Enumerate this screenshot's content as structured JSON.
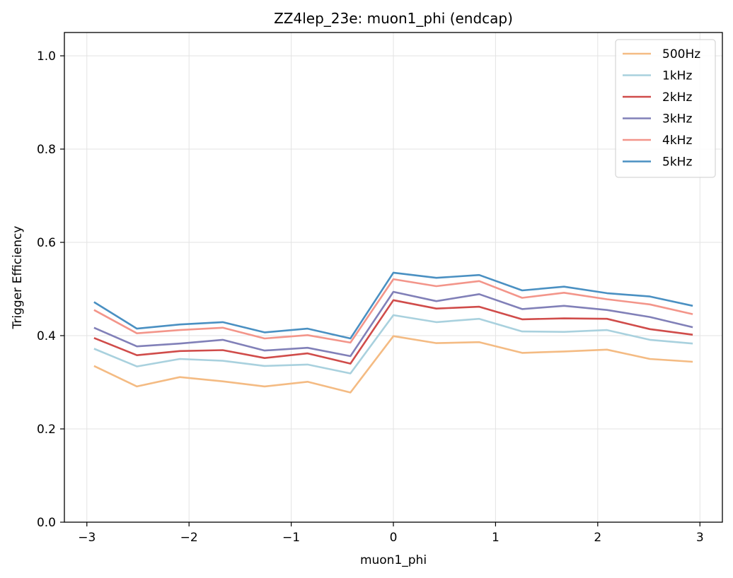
{
  "chart_data": {
    "type": "line",
    "title": "ZZ4lep_23e: muon1_phi (endcap)",
    "xlabel": "muon1_phi",
    "ylabel": "Trigger Efficiency",
    "xlim": [
      -3.22,
      3.22
    ],
    "ylim": [
      0.0,
      1.05
    ],
    "xticks": [
      -3,
      -2,
      -1,
      0,
      1,
      2,
      3
    ],
    "xtick_labels": [
      "−3",
      "−2",
      "−1",
      "0",
      "1",
      "2",
      "3"
    ],
    "yticks": [
      0.0,
      0.2,
      0.4,
      0.6,
      0.8,
      1.0
    ],
    "ytick_labels": [
      "0.0",
      "0.2",
      "0.4",
      "0.6",
      "0.8",
      "1.0"
    ],
    "grid": true,
    "legend_position": "top-right",
    "x": [
      -2.93,
      -2.51,
      -2.09,
      -1.67,
      -1.26,
      -0.84,
      -0.42,
      0.0,
      0.42,
      0.84,
      1.26,
      1.67,
      2.09,
      2.51,
      2.93
    ],
    "series": [
      {
        "name": "500Hz",
        "color": "#f4bb83",
        "values": [
          0.335,
          0.291,
          0.311,
          0.302,
          0.291,
          0.301,
          0.278,
          0.399,
          0.384,
          0.386,
          0.363,
          0.366,
          0.37,
          0.35,
          0.344
        ]
      },
      {
        "name": "1kHz",
        "color": "#a9d1de",
        "values": [
          0.372,
          0.334,
          0.35,
          0.346,
          0.335,
          0.338,
          0.319,
          0.444,
          0.429,
          0.436,
          0.409,
          0.408,
          0.412,
          0.391,
          0.383
        ]
      },
      {
        "name": "2kHz",
        "color": "#d04c4a",
        "values": [
          0.395,
          0.358,
          0.367,
          0.369,
          0.352,
          0.362,
          0.34,
          0.476,
          0.458,
          0.462,
          0.435,
          0.437,
          0.436,
          0.414,
          0.402
        ]
      },
      {
        "name": "3kHz",
        "color": "#8180b8",
        "values": [
          0.417,
          0.377,
          0.383,
          0.391,
          0.368,
          0.374,
          0.356,
          0.494,
          0.474,
          0.489,
          0.457,
          0.464,
          0.455,
          0.44,
          0.418
        ]
      },
      {
        "name": "4kHz",
        "color": "#f3958a",
        "values": [
          0.455,
          0.405,
          0.412,
          0.417,
          0.394,
          0.401,
          0.385,
          0.521,
          0.506,
          0.517,
          0.481,
          0.492,
          0.478,
          0.467,
          0.446
        ]
      },
      {
        "name": "5kHz",
        "color": "#4a90c2",
        "values": [
          0.472,
          0.415,
          0.424,
          0.429,
          0.407,
          0.415,
          0.394,
          0.535,
          0.524,
          0.53,
          0.497,
          0.505,
          0.491,
          0.484,
          0.464
        ]
      }
    ]
  }
}
